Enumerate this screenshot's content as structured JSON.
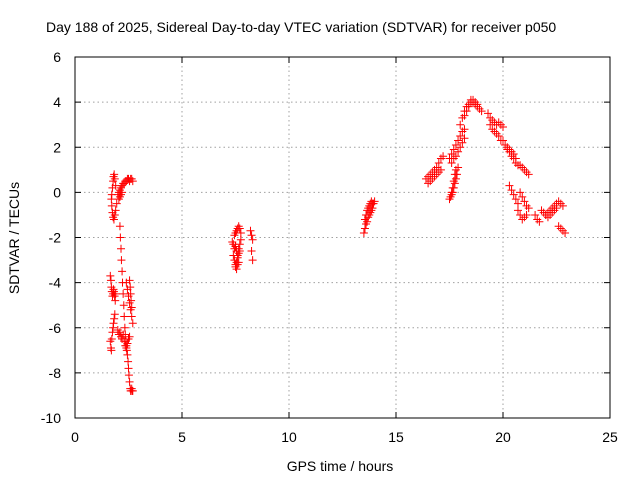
{
  "chart_data": {
    "type": "scatter",
    "title": "Day 188 of 2025, Sidereal Day-to-day VTEC variation (SDTVAR) for receiver p050",
    "xlabel": "GPS time / hours",
    "ylabel": "SDTVAR / TECUs",
    "xlim": [
      0,
      25
    ],
    "ylim": [
      -10,
      6
    ],
    "xticks": [
      0,
      5,
      10,
      15,
      20,
      25
    ],
    "yticks": [
      -10,
      -8,
      -6,
      -4,
      -2,
      0,
      2,
      4,
      6
    ],
    "grid": true,
    "marker": "plus",
    "color": "#ff0000",
    "series": [
      {
        "name": "SDTVAR",
        "segments": [
          {
            "x": [
              1.7,
              1.72,
              1.75,
              1.78,
              1.8,
              1.83,
              1.86,
              1.9
            ],
            "y": [
              -0.3,
              -0.1,
              0.2,
              0.5,
              0.7,
              0.8,
              0.6,
              0.3
            ]
          },
          {
            "x": [
              1.72,
              1.75,
              1.78,
              1.82,
              1.86,
              1.9,
              1.95
            ],
            "y": [
              -0.6,
              -0.9,
              -1.1,
              -1.2,
              -1.0,
              -0.8,
              -0.5
            ]
          },
          {
            "x": [
              2.0,
              2.05,
              2.1,
              2.15,
              2.2,
              2.25,
              2.3,
              2.35,
              2.4,
              2.45,
              2.5,
              2.55,
              2.6,
              2.65,
              2.7
            ],
            "y": [
              -0.1,
              0.0,
              0.1,
              0.2,
              0.3,
              0.4,
              0.4,
              0.5,
              0.5,
              0.6,
              0.6,
              0.5,
              0.6,
              0.6,
              0.5
            ]
          },
          {
            "x": [
              2.05,
              2.1,
              2.15,
              2.2
            ],
            "y": [
              -0.3,
              -0.2,
              -0.1,
              0.0
            ]
          },
          {
            "x": [
              1.65,
              1.68,
              1.7,
              1.72,
              1.75,
              1.78,
              1.8,
              1.82,
              1.85,
              1.88,
              1.9
            ],
            "y": [
              -3.7,
              -3.9,
              -4.2,
              -4.4,
              -4.6,
              -4.5,
              -4.3,
              -4.4,
              -4.6,
              -4.8,
              -4.5
            ]
          },
          {
            "x": [
              1.65,
              1.68,
              1.7,
              1.72,
              1.75,
              1.78,
              1.8,
              1.83,
              1.86
            ],
            "y": [
              -6.6,
              -6.9,
              -7.0,
              -6.5,
              -6.2,
              -6.0,
              -5.8,
              -5.6,
              -5.4
            ]
          },
          {
            "x": [
              2.1,
              2.12,
              2.15,
              2.17,
              2.2,
              2.22,
              2.25,
              2.28,
              2.3,
              2.33,
              2.35,
              2.38,
              2.4,
              2.42,
              2.45,
              2.48,
              2.5,
              2.52,
              2.55,
              2.58,
              2.6,
              2.62,
              2.65,
              2.68,
              2.7
            ],
            "y": [
              -1.5,
              -2.0,
              -2.5,
              -3.0,
              -3.5,
              -4.0,
              -4.5,
              -5.0,
              -5.5,
              -6.0,
              -6.3,
              -6.6,
              -6.8,
              -7.0,
              -7.2,
              -7.5,
              -7.8,
              -8.1,
              -8.4,
              -8.7,
              -8.8,
              -8.8,
              -8.7,
              -8.8,
              -8.8
            ]
          },
          {
            "x": [
              2.0,
              2.05,
              2.1,
              2.15,
              2.2,
              2.25,
              2.3,
              2.35,
              2.4,
              2.45,
              2.5,
              2.55
            ],
            "y": [
              -6.1,
              -6.3,
              -6.2,
              -6.4,
              -6.5,
              -6.3,
              -6.6,
              -6.8,
              -6.9,
              -6.7,
              -6.5,
              -6.4
            ]
          },
          {
            "x": [
              2.4,
              2.45,
              2.5,
              2.55,
              2.6,
              2.65,
              2.7
            ],
            "y": [
              -4.0,
              -4.3,
              -4.6,
              -4.9,
              -5.2,
              -5.5,
              -5.8
            ]
          },
          {
            "x": [
              2.55,
              2.58,
              2.6,
              2.62,
              2.65
            ],
            "y": [
              -3.9,
              -4.2,
              -4.5,
              -4.8,
              -5.1
            ]
          },
          {
            "x": [
              7.35,
              7.4,
              7.45,
              7.5,
              7.55,
              7.6,
              7.65,
              7.7,
              7.75
            ],
            "y": [
              -2.2,
              -2.3,
              -2.5,
              -2.4,
              -2.6,
              -2.8,
              -2.5,
              -2.3,
              -2.1
            ]
          },
          {
            "x": [
              7.4,
              7.45,
              7.5,
              7.55,
              7.6,
              7.65,
              7.7
            ],
            "y": [
              -2.8,
              -3.0,
              -3.2,
              -3.1,
              -2.9,
              -2.7,
              -2.6
            ]
          },
          {
            "x": [
              7.45,
              7.5,
              7.55,
              7.6,
              7.65,
              7.7,
              7.75
            ],
            "y": [
              -1.9,
              -1.8,
              -1.7,
              -1.6,
              -1.5,
              -1.6,
              -1.8
            ]
          },
          {
            "x": [
              7.5,
              7.55,
              7.6,
              7.65
            ],
            "y": [
              -3.3,
              -3.4,
              -3.2,
              -3.1
            ]
          },
          {
            "x": [
              8.2,
              8.25,
              8.3
            ],
            "y": [
              -1.7,
              -1.9,
              -2.1
            ]
          },
          {
            "x": [
              8.25,
              8.3
            ],
            "y": [
              -2.6,
              -3.0
            ]
          },
          {
            "x": [
              13.5,
              13.55,
              13.6,
              13.65,
              13.7,
              13.75,
              13.8,
              13.85,
              13.9,
              13.95,
              14.0
            ],
            "y": [
              -1.8,
              -1.6,
              -1.4,
              -1.3,
              -1.1,
              -1.0,
              -0.9,
              -0.8,
              -0.7,
              -0.5,
              -0.4
            ]
          },
          {
            "x": [
              13.55,
              13.6,
              13.65,
              13.7,
              13.75,
              13.8,
              13.85,
              13.9
            ],
            "y": [
              -1.2,
              -1.0,
              -0.8,
              -0.7,
              -0.6,
              -0.5,
              -0.4,
              -0.5
            ]
          },
          {
            "x": [
              16.4,
              16.5,
              16.6,
              16.7,
              16.8,
              16.9,
              17.0,
              17.1,
              17.2
            ],
            "y": [
              0.6,
              0.7,
              0.8,
              0.9,
              1.0,
              1.1,
              1.3,
              1.5,
              1.6
            ]
          },
          {
            "x": [
              16.5,
              16.6,
              16.7,
              16.8,
              16.9,
              17.0,
              17.1
            ],
            "y": [
              0.4,
              0.5,
              0.6,
              0.7,
              0.8,
              0.9,
              1.0
            ]
          },
          {
            "x": [
              17.5,
              17.55,
              17.6,
              17.65,
              17.7,
              17.75,
              17.8
            ],
            "y": [
              -0.3,
              -0.2,
              0.0,
              0.2,
              0.5,
              0.8,
              1.0
            ]
          },
          {
            "x": [
              17.6,
              17.65,
              17.7,
              17.75,
              17.8,
              17.85,
              17.9
            ],
            "y": [
              -0.1,
              0.0,
              0.2,
              0.4,
              0.6,
              0.8,
              1.1
            ]
          },
          {
            "x": [
              17.5,
              17.6,
              17.7,
              17.8,
              17.9,
              18.0,
              18.1,
              18.2
            ],
            "y": [
              1.5,
              1.7,
              1.9,
              2.1,
              2.3,
              2.5,
              2.7,
              2.8
            ]
          },
          {
            "x": [
              17.6,
              17.7,
              17.8,
              17.9,
              18.0,
              18.1,
              18.2
            ],
            "y": [
              1.3,
              1.5,
              1.6,
              1.8,
              2.0,
              2.2,
              2.4
            ]
          },
          {
            "x": [
              18.0,
              18.1,
              18.2,
              18.3,
              18.4,
              18.5,
              18.6,
              18.7,
              18.8,
              18.9,
              19.0
            ],
            "y": [
              3.0,
              3.3,
              3.6,
              3.8,
              3.9,
              4.0,
              4.0,
              3.9,
              3.8,
              3.7,
              3.6
            ]
          },
          {
            "x": [
              18.2,
              18.3,
              18.4,
              18.5,
              18.6,
              18.7,
              18.8
            ],
            "y": [
              3.4,
              3.6,
              3.8,
              4.1,
              4.1,
              4.0,
              3.9
            ]
          },
          {
            "x": [
              19.3,
              19.4,
              19.5,
              19.6,
              19.7,
              19.8,
              19.9,
              20.0
            ],
            "y": [
              3.5,
              3.3,
              3.2,
              3.1,
              3.0,
              3.1,
              3.0,
              2.9
            ]
          },
          {
            "x": [
              19.4,
              19.5,
              19.6,
              19.7,
              19.8,
              19.9
            ],
            "y": [
              3.0,
              2.8,
              2.7,
              2.6,
              2.5,
              2.3
            ]
          },
          {
            "x": [
              20.0,
              20.1,
              20.2,
              20.3,
              20.4,
              20.5,
              20.6
            ],
            "y": [
              2.3,
              2.1,
              2.0,
              1.9,
              1.8,
              1.7,
              1.5
            ]
          },
          {
            "x": [
              20.2,
              20.3,
              20.4,
              20.5,
              20.6,
              20.7
            ],
            "y": [
              1.9,
              1.8,
              1.6,
              1.5,
              1.3,
              1.2
            ]
          },
          {
            "x": [
              20.8,
              20.9,
              21.0,
              21.1,
              21.2
            ],
            "y": [
              1.2,
              1.1,
              1.0,
              0.9,
              0.8
            ]
          },
          {
            "x": [
              20.3,
              20.4,
              20.5,
              20.6,
              20.7
            ],
            "y": [
              0.3,
              0.1,
              -0.1,
              -0.3,
              -0.5
            ]
          },
          {
            "x": [
              20.8,
              20.9,
              21.0,
              21.1,
              21.2
            ],
            "y": [
              0.0,
              -0.2,
              -0.4,
              -0.6,
              -0.7
            ]
          },
          {
            "x": [
              20.7,
              20.8,
              20.9,
              21.0,
              21.1
            ],
            "y": [
              -0.8,
              -1.0,
              -1.2,
              -1.1,
              -1.0
            ]
          },
          {
            "x": [
              21.5,
              21.6,
              21.7
            ],
            "y": [
              -1.0,
              -1.2,
              -1.3
            ]
          },
          {
            "x": [
              21.8,
              21.9,
              22.0,
              22.1,
              22.2,
              22.3,
              22.4,
              22.5,
              22.6,
              22.7,
              22.8
            ],
            "y": [
              -0.8,
              -0.9,
              -1.0,
              -0.9,
              -0.8,
              -0.7,
              -0.6,
              -0.5,
              -0.4,
              -0.5,
              -0.6
            ]
          },
          {
            "x": [
              22.0,
              22.1,
              22.2,
              22.3,
              22.4,
              22.5
            ],
            "y": [
              -1.0,
              -1.1,
              -1.0,
              -0.9,
              -0.8,
              -0.7
            ]
          },
          {
            "x": [
              22.6,
              22.7,
              22.8,
              22.9
            ],
            "y": [
              -1.5,
              -1.6,
              -1.7,
              -1.8
            ]
          }
        ]
      }
    ]
  }
}
